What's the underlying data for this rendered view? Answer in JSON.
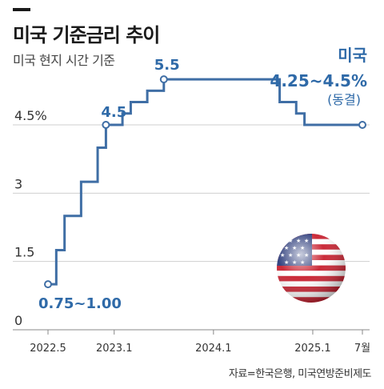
{
  "header": {
    "title": "미국 기준금리 추이",
    "subtitle": "미국 현지 시간 기준"
  },
  "source": "자료=한국은행, 미국연방준비제도",
  "chart_data": {
    "type": "line",
    "step": true,
    "series": [
      {
        "name": "미국",
        "points": [
          {
            "x": "2022-05",
            "y": 1.0
          },
          {
            "x": "2022-06",
            "y": 1.75
          },
          {
            "x": "2022-07",
            "y": 2.5
          },
          {
            "x": "2022-09",
            "y": 3.25
          },
          {
            "x": "2022-11",
            "y": 4.0
          },
          {
            "x": "2022-12",
            "y": 4.5
          },
          {
            "x": "2023-02",
            "y": 4.75
          },
          {
            "x": "2023-03",
            "y": 5.0
          },
          {
            "x": "2023-05",
            "y": 5.25
          },
          {
            "x": "2023-07",
            "y": 5.5
          },
          {
            "x": "2024-09",
            "y": 5.0
          },
          {
            "x": "2024-11",
            "y": 4.75
          },
          {
            "x": "2024-12",
            "y": 4.5
          },
          {
            "x": "2025-07",
            "y": 4.5
          }
        ]
      }
    ],
    "y_ticks": [
      {
        "value": 0,
        "label": "0"
      },
      {
        "value": 1.5,
        "label": "1.5"
      },
      {
        "value": 3,
        "label": "3"
      },
      {
        "value": 4.5,
        "label": "4.5%"
      }
    ],
    "x_ticks": [
      {
        "value": "2022-05",
        "label": "2022.5"
      },
      {
        "value": "2023-01",
        "label": "2023.1"
      },
      {
        "value": "2024-01",
        "label": "2024.1"
      },
      {
        "value": "2025-01",
        "label": "2025.1"
      },
      {
        "value": "2025-07",
        "label": "7월"
      }
    ],
    "ylim": [
      0,
      6
    ],
    "grid": true,
    "annotations": [
      {
        "x": "2022-05",
        "y": 1.0,
        "text": "0.75~1.00",
        "marker": true
      },
      {
        "x": "2022-12",
        "y": 4.5,
        "text": "4.5",
        "marker": true
      },
      {
        "x": "2023-07",
        "y": 5.5,
        "text": "5.5",
        "marker": true
      },
      {
        "x": "2025-07",
        "y": 4.5,
        "text": "4.25~4.5%",
        "label": "미국",
        "note": "(동결)",
        "marker": true
      }
    ],
    "colors": {
      "line": "#3f6ea5",
      "annotation": "#2f6aa8"
    },
    "decoration": "us-flag-sphere"
  }
}
